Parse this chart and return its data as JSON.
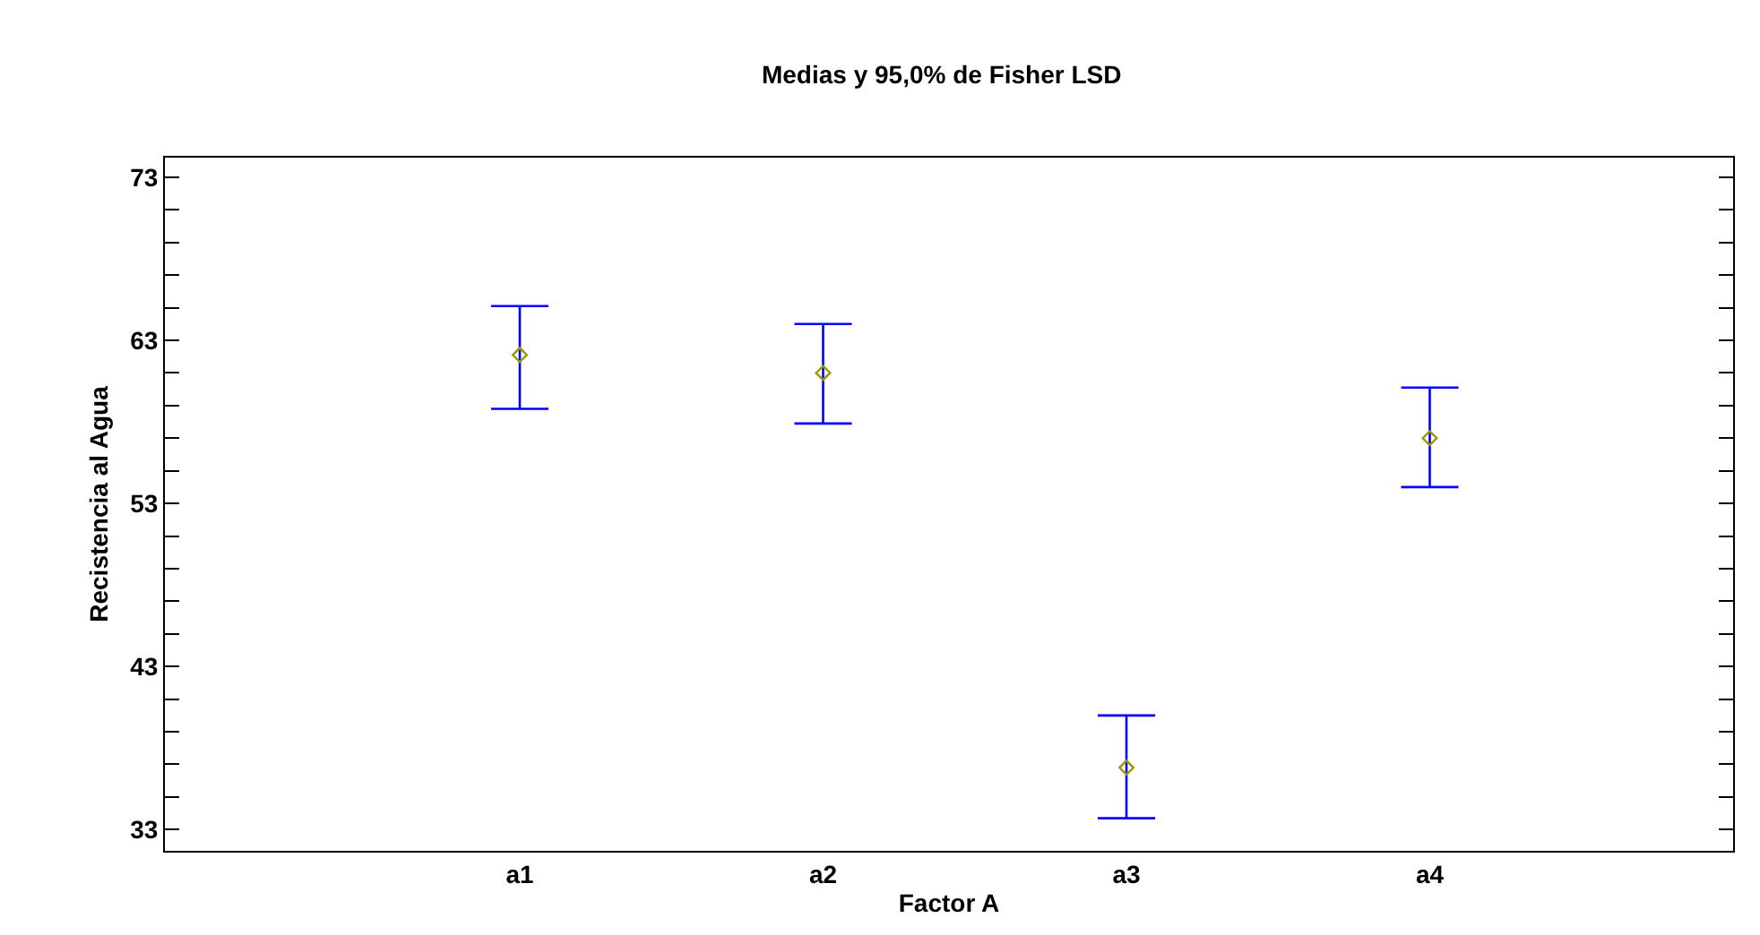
{
  "chart_data": {
    "type": "scatter",
    "title": "Medias y 95,0% de Fisher LSD",
    "xlabel": "Factor A",
    "ylabel": "Recistencia al Agua",
    "categories": [
      "a1",
      "a2",
      "a3",
      "a4"
    ],
    "series": [
      {
        "color": "#999900",
        "values": [
          62.1,
          61.0,
          36.8,
          57.0
        ],
        "errors": [
          [
            58.8,
            65.1
          ],
          [
            57.9,
            64.0
          ],
          [
            33.7,
            40.0
          ],
          [
            54.0,
            60.1
          ]
        ]
      }
    ],
    "ylim": [
      31.7,
      74.2
    ],
    "yticks": [
      33,
      {
        "value": 35,
        "label": null
      },
      {
        "value": 37,
        "label": null
      },
      {
        "value": 39,
        "label": null
      },
      {
        "value": 41,
        "label": null
      },
      43,
      {
        "value": 45,
        "label": null
      },
      {
        "value": 47,
        "label": null
      },
      {
        "value": 49,
        "label": null
      },
      {
        "value": 51,
        "label": null
      },
      53,
      {
        "value": 55,
        "label": null
      },
      {
        "value": 57,
        "label": null
      },
      {
        "value": 59,
        "label": null
      },
      {
        "value": 61,
        "label": null
      },
      63,
      {
        "value": 65,
        "label": null
      },
      {
        "value": 67,
        "label": null
      },
      {
        "value": 69,
        "label": null
      },
      {
        "value": 71,
        "label": null
      },
      73
    ],
    "marker": "diamond"
  }
}
